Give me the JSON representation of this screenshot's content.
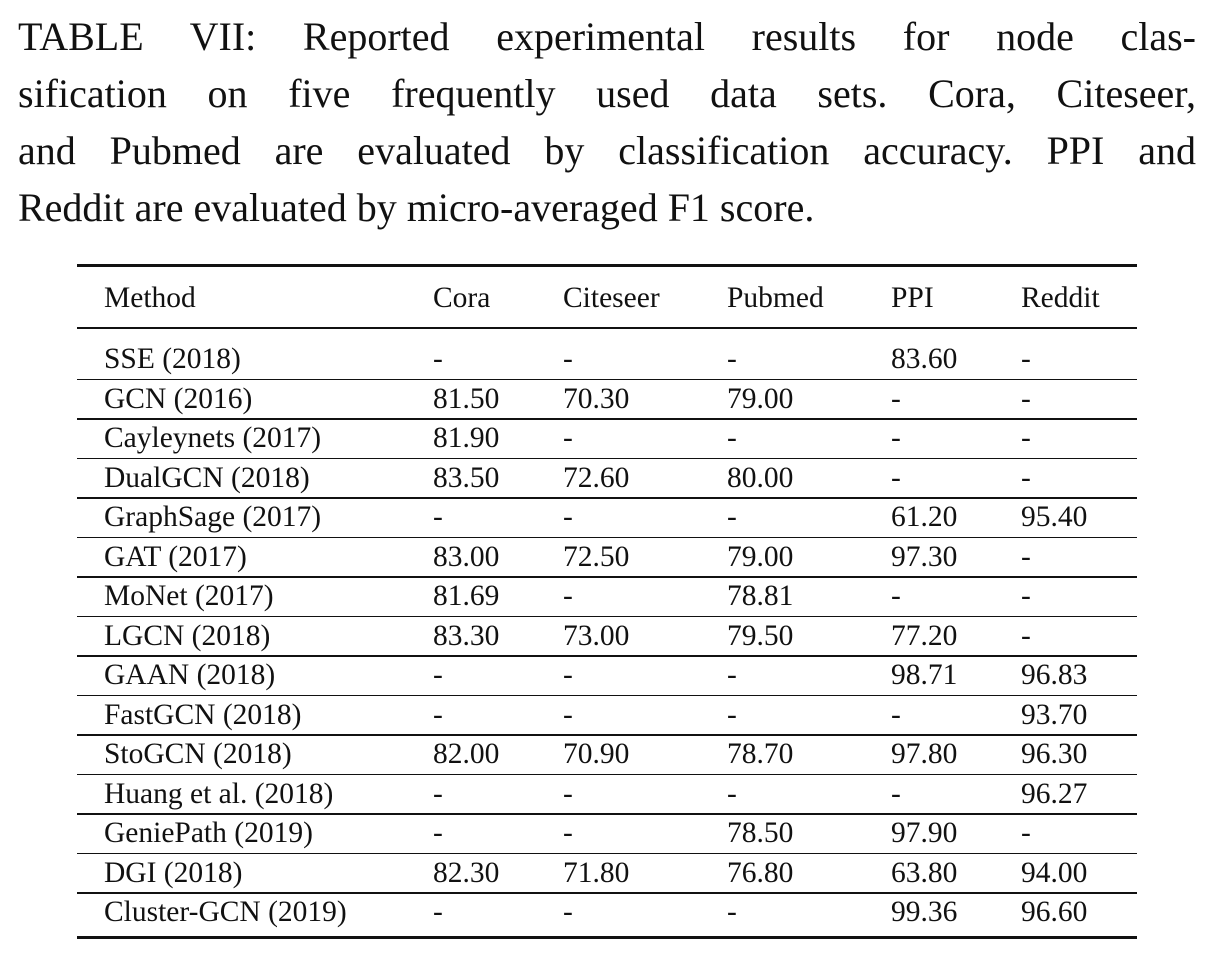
{
  "caption": {
    "lines": [
      "TABLE VII: Reported experimental results for node clas-",
      "sification on five frequently used data sets. Cora, Citeseer,",
      "and Pubmed are evaluated by classification accuracy. PPI and",
      "Reddit are evaluated by micro-averaged F1 score."
    ]
  },
  "table": {
    "header": [
      "Method",
      "Cora",
      "Citeseer",
      "Pubmed",
      "PPI",
      "Reddit"
    ],
    "rows": [
      [
        "SSE (2018)",
        "-",
        "-",
        "-",
        "83.60",
        "-"
      ],
      [
        "GCN (2016)",
        "81.50",
        "70.30",
        "79.00",
        "-",
        "-"
      ],
      [
        "Cayleynets (2017)",
        "81.90",
        "-",
        "-",
        "-",
        "-"
      ],
      [
        "DualGCN (2018)",
        "83.50",
        "72.60",
        "80.00",
        "-",
        "-"
      ],
      [
        "GraphSage (2017)",
        "-",
        "-",
        "-",
        "61.20",
        "95.40"
      ],
      [
        "GAT (2017)",
        "83.00",
        "72.50",
        "79.00",
        "97.30",
        "-"
      ],
      [
        "MoNet (2017)",
        "81.69",
        "-",
        "78.81",
        "-",
        "-"
      ],
      [
        "LGCN (2018)",
        "83.30",
        "73.00",
        "79.50",
        "77.20",
        "-"
      ],
      [
        "GAAN (2018)",
        "-",
        "-",
        "-",
        "98.71",
        "96.83"
      ],
      [
        "FastGCN (2018)",
        "-",
        "-",
        "-",
        "-",
        "93.70"
      ],
      [
        "StoGCN (2018)",
        "82.00",
        "70.90",
        "78.70",
        "97.80",
        "96.30"
      ],
      [
        "Huang et al. (2018)",
        "-",
        "-",
        "-",
        "-",
        "96.27"
      ],
      [
        "GeniePath (2019)",
        "-",
        "-",
        "78.50",
        "97.90",
        "-"
      ],
      [
        "DGI (2018)",
        "82.30",
        "71.80",
        "76.80",
        "63.80",
        "94.00"
      ],
      [
        "Cluster-GCN (2019)",
        "-",
        "-",
        "-",
        "99.36",
        "96.60"
      ]
    ]
  }
}
